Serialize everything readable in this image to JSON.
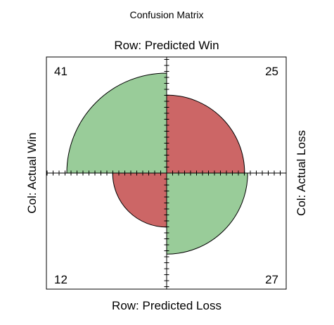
{
  "chart_data": {
    "type": "fourfold",
    "title": "Confusion Matrix",
    "row_labels": {
      "top": "Row: Predicted Win",
      "bottom": "Row: Predicted Loss"
    },
    "col_labels": {
      "left": "Col: Actual Win",
      "right": "Col: Actual Loss"
    },
    "cells": [
      {
        "quadrant": "top-left",
        "row": "Predicted Win",
        "col": "Actual Win",
        "value": 41,
        "color": "#99cc99"
      },
      {
        "quadrant": "top-right",
        "row": "Predicted Win",
        "col": "Actual Loss",
        "value": 25,
        "color": "#cc6666"
      },
      {
        "quadrant": "bottom-left",
        "row": "Predicted Loss",
        "col": "Actual Win",
        "value": 12,
        "color": "#cc6666"
      },
      {
        "quadrant": "bottom-right",
        "row": "Predicted Loss",
        "col": "Actual Loss",
        "value": 27,
        "color": "#99cc99"
      }
    ]
  }
}
